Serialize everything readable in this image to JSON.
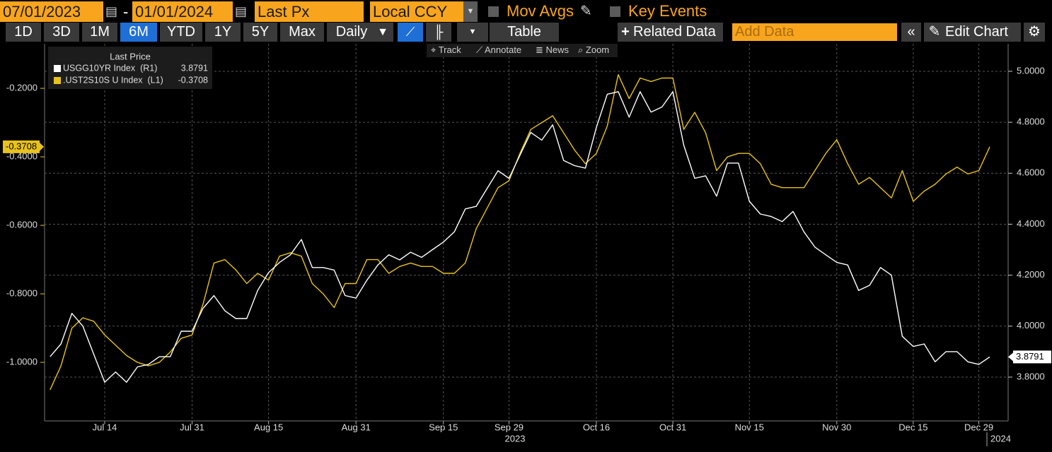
{
  "toolbar": {
    "start_date": "07/01/2023",
    "end_date": "01/01/2024",
    "date_separator": "-",
    "field": "Last Px",
    "currency": "Local CCY",
    "mov_avgs": "Mov Avgs",
    "key_events": "Key Events",
    "ranges": [
      "1D",
      "3D",
      "1M",
      "6M",
      "YTD",
      "1Y",
      "5Y",
      "Max"
    ],
    "frequency": "Daily",
    "table": "Table",
    "related_data": "Related Data",
    "add_data": "Add Data",
    "edit_chart": "Edit Chart",
    "chart_tools": [
      "Track",
      "Annotate",
      "News",
      "Zoom"
    ]
  },
  "chart_data": {
    "type": "line",
    "legend_title": "Last Price",
    "categories": [
      null,
      null,
      null,
      null,
      null,
      "Jul 14",
      null,
      null,
      null,
      null,
      null,
      null,
      null,
      "Jul 31",
      null,
      null,
      null,
      null,
      null,
      null,
      "Aug 15",
      null,
      null,
      null,
      null,
      null,
      null,
      null,
      "Aug 31",
      null,
      null,
      null,
      null,
      null,
      null,
      null,
      "Sep 15",
      null,
      null,
      null,
      null,
      null,
      "Sep 29",
      null,
      null,
      null,
      null,
      null,
      null,
      null,
      "Oct 16",
      null,
      null,
      null,
      null,
      null,
      null,
      "Oct 31",
      null,
      null,
      null,
      null,
      null,
      null,
      "Nov 15",
      null,
      null,
      null,
      null,
      null,
      null,
      null,
      "Nov 30",
      null,
      null,
      null,
      null,
      null,
      null,
      "Dec 15",
      null,
      null,
      null,
      null,
      null,
      "Dec 29",
      null
    ],
    "x_years": [
      "2023",
      "2024"
    ],
    "series": [
      {
        "name": "USGG10YR Index  (R1)",
        "color": "#ffffff",
        "axis": "y2",
        "values": [
          3.88,
          3.93,
          4.05,
          4.0,
          3.89,
          3.78,
          3.82,
          3.78,
          3.84,
          3.85,
          3.88,
          3.88,
          3.98,
          3.98,
          4.07,
          4.12,
          4.06,
          4.03,
          4.03,
          4.14,
          4.21,
          4.25,
          4.28,
          4.34,
          4.23,
          4.23,
          4.22,
          4.12,
          4.11,
          4.18,
          4.24,
          4.28,
          4.26,
          4.29,
          4.27,
          4.3,
          4.33,
          4.37,
          4.46,
          4.47,
          4.54,
          4.61,
          4.58,
          4.67,
          4.76,
          4.73,
          4.79,
          4.65,
          4.63,
          4.62,
          4.78,
          4.91,
          4.92,
          4.82,
          4.92,
          4.84,
          4.86,
          4.92,
          4.71,
          4.58,
          4.59,
          4.51,
          4.64,
          4.64,
          4.49,
          4.44,
          4.43,
          4.41,
          4.45,
          4.37,
          4.31,
          4.28,
          4.25,
          4.24,
          4.14,
          4.16,
          4.23,
          4.2,
          3.96,
          3.92,
          3.93,
          3.86,
          3.9,
          3.9,
          3.86,
          3.85,
          3.8791
        ]
      },
      {
        "name": ".UST2S10S U Index  (L1)",
        "color": "#e8c21c",
        "axis": "y",
        "values": [
          -1.08,
          -1.01,
          -0.9,
          -0.87,
          -0.88,
          -0.92,
          -0.95,
          -0.98,
          -1.0,
          -1.01,
          -1.0,
          -0.97,
          -0.93,
          -0.92,
          -0.83,
          -0.71,
          -0.7,
          -0.73,
          -0.77,
          -0.74,
          -0.76,
          -0.69,
          -0.68,
          -0.69,
          -0.77,
          -0.8,
          -0.84,
          -0.77,
          -0.77,
          -0.7,
          -0.7,
          -0.74,
          -0.72,
          -0.71,
          -0.72,
          -0.72,
          -0.74,
          -0.74,
          -0.71,
          -0.61,
          -0.55,
          -0.49,
          -0.47,
          -0.39,
          -0.32,
          -0.3,
          -0.28,
          -0.33,
          -0.38,
          -0.42,
          -0.39,
          -0.31,
          -0.16,
          -0.23,
          -0.17,
          -0.18,
          -0.17,
          -0.17,
          -0.32,
          -0.27,
          -0.33,
          -0.44,
          -0.4,
          -0.39,
          -0.39,
          -0.42,
          -0.48,
          -0.49,
          -0.49,
          -0.49,
          -0.44,
          -0.39,
          -0.35,
          -0.42,
          -0.48,
          -0.46,
          -0.49,
          -0.52,
          -0.44,
          -0.53,
          -0.5,
          -0.48,
          -0.45,
          -0.43,
          -0.45,
          -0.44,
          -0.3708
        ]
      }
    ],
    "ylim": [
      -1.171,
      -0.07
    ],
    "yticks": [
      {
        "value": -1.0,
        "label": "-1.0000"
      },
      {
        "value": -0.8,
        "label": "-0.8000"
      },
      {
        "value": -0.6,
        "label": "-0.6000"
      },
      {
        "value": -0.4,
        "label": "-0.4000"
      },
      {
        "value": -0.2,
        "label": "-0.2000"
      }
    ],
    "y2lim": [
      3.628,
      5.108
    ],
    "y2ticks": [
      {
        "value": 3.8,
        "label": "3.8000"
      },
      {
        "value": 4.0,
        "label": "4.0000"
      },
      {
        "value": 4.2,
        "label": "4.2000"
      },
      {
        "value": 4.4,
        "label": "4.4000"
      },
      {
        "value": 4.6,
        "label": "4.6000"
      },
      {
        "value": 4.8,
        "label": "4.8000"
      },
      {
        "value": 5.0,
        "label": "5.0000"
      }
    ],
    "grid": true
  }
}
